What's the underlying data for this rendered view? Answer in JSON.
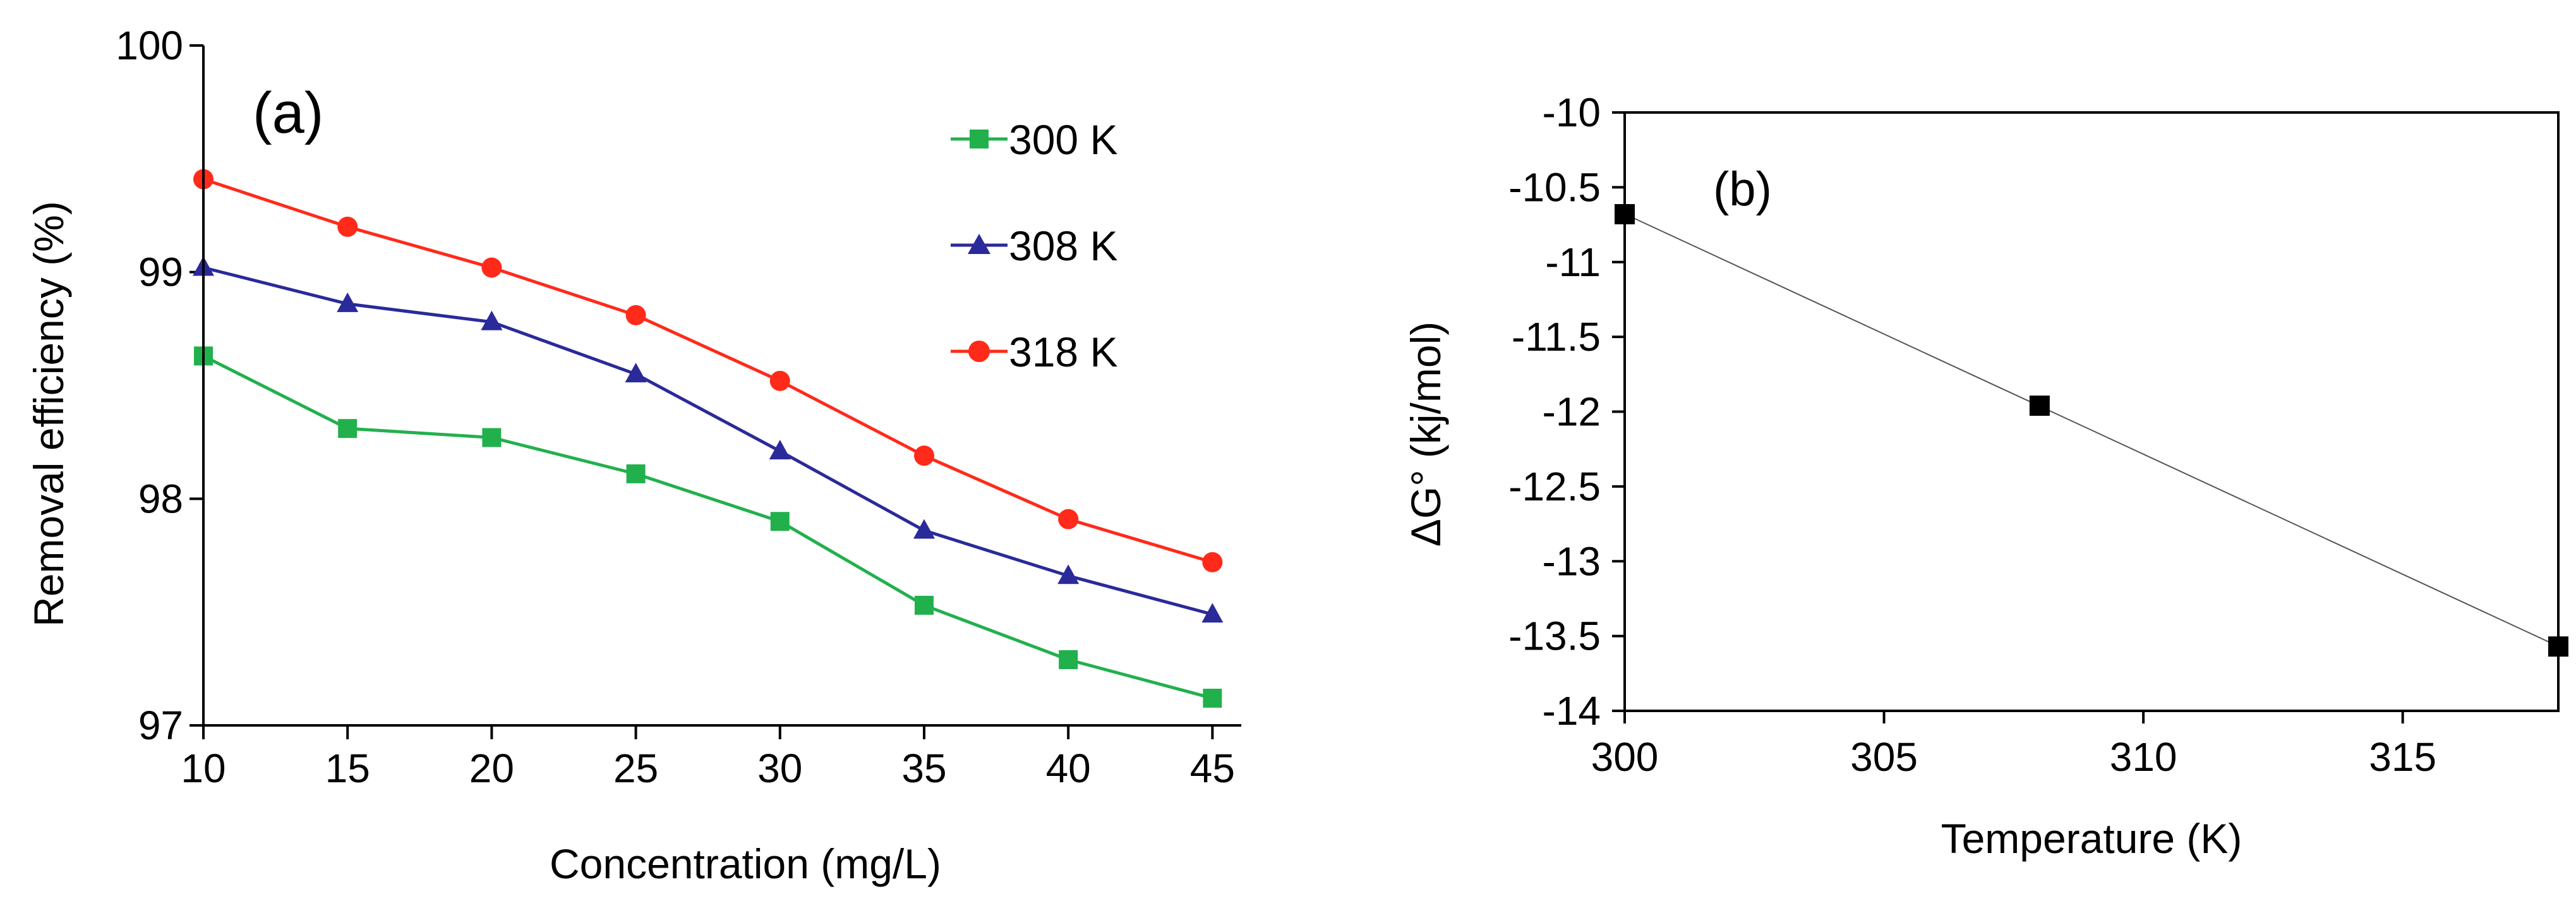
{
  "chart_data": [
    {
      "type": "line",
      "panel_label": "(a)",
      "title": "",
      "xlabel": "Concentration (mg/L)",
      "ylabel": "Removal efficiency (%)",
      "categories": [
        10,
        15,
        20,
        25,
        30,
        35,
        40,
        45
      ],
      "xlim": [
        10,
        46
      ],
      "ylim": [
        97,
        100
      ],
      "x_ticks": [
        "10",
        "15",
        "20",
        "25",
        "30",
        "35",
        "40",
        "45"
      ],
      "y_ticks": [
        "97",
        "98",
        "99",
        "100"
      ],
      "grid": false,
      "legend_position": "top-right",
      "series": [
        {
          "name": "300 K",
          "color": "#22b04d",
          "marker": "square",
          "values": [
            98.63,
            98.31,
            98.27,
            98.11,
            97.9,
            97.53,
            97.29,
            97.12
          ]
        },
        {
          "name": "308 K",
          "color": "#2a2a9a",
          "marker": "triangle",
          "values": [
            99.02,
            98.86,
            98.78,
            98.55,
            98.21,
            97.86,
            97.66,
            97.49
          ]
        },
        {
          "name": "318 K",
          "color": "#ff2a1a",
          "marker": "circle",
          "values": [
            99.41,
            99.2,
            99.02,
            98.81,
            98.52,
            98.19,
            97.91,
            97.72
          ]
        }
      ]
    },
    {
      "type": "scatter",
      "panel_label": "(b)",
      "title": "",
      "xlabel": "Temperature (K)",
      "ylabel": "ΔG° (kj/mol)",
      "xlim": [
        300,
        318
      ],
      "ylim": [
        -14,
        -10
      ],
      "x_ticks": [
        "300",
        "305",
        "310",
        "315"
      ],
      "y_ticks": [
        "-10",
        "-10.5",
        "-11",
        "-11.5",
        "-12",
        "-12.5",
        "-13",
        "-13.5",
        "-14"
      ],
      "grid": false,
      "trendline": true,
      "series": [
        {
          "name": "ΔG°",
          "color": "#000000",
          "marker": "square",
          "x": [
            300,
            308,
            318
          ],
          "y": [
            -10.68,
            -11.96,
            -13.57
          ]
        }
      ]
    }
  ]
}
